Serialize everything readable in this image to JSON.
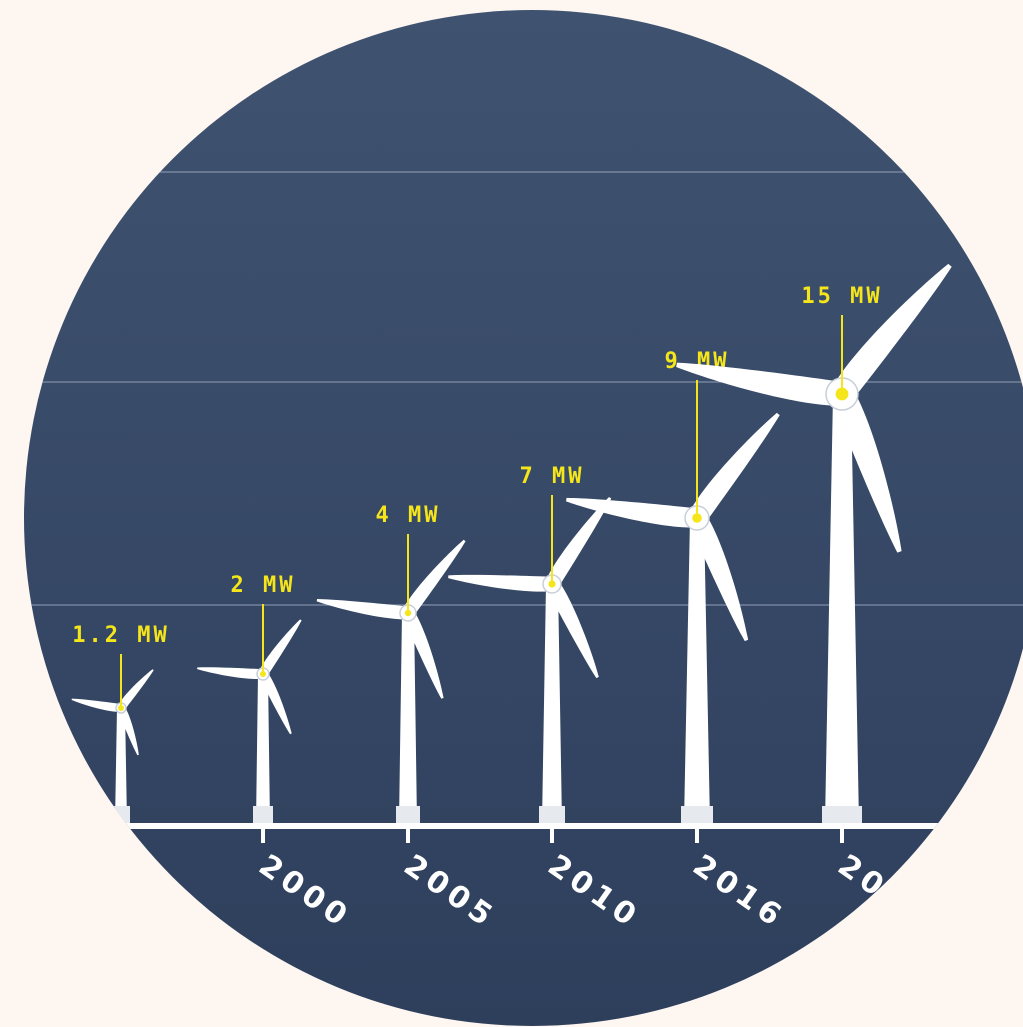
{
  "colors": {
    "page_background": "#fdf6f1",
    "panel_top": "#3f5371",
    "panel_bottom": "#2e3f5c",
    "accent": "#f5e51b",
    "turbine": "#ffffff",
    "gridline": "#8e9bb0"
  },
  "chart_data": {
    "type": "bar",
    "title": "",
    "xlabel": "",
    "ylabel": "",
    "grid": true,
    "ylim": [
      0,
      20
    ],
    "categories": [
      "",
      "2000",
      "2005",
      "2010",
      "2016",
      "20"
    ],
    "series": [
      {
        "values": [
          1.2,
          2,
          4,
          7,
          9,
          15
        ],
        "labels": [
          "1.2 MW",
          "2 MW",
          "4 MW",
          "7 MW",
          "9 MW",
          "15 MW"
        ]
      }
    ]
  }
}
